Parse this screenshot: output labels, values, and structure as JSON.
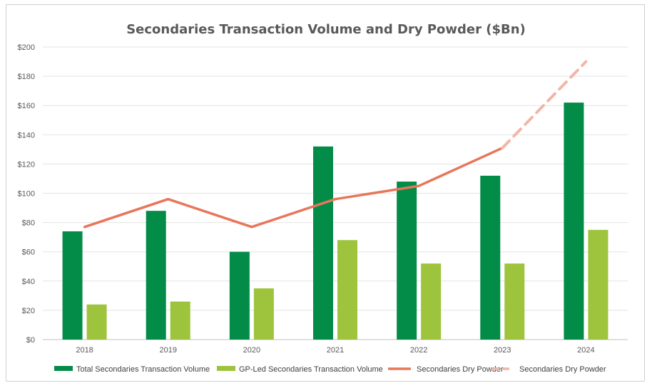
{
  "chart_data": {
    "type": "bar",
    "title": "Secondaries Transaction Volume and Dry Powder ($Bn)",
    "categories": [
      "2018",
      "2019",
      "2020",
      "2021",
      "2022",
      "2023",
      "2024"
    ],
    "ylim": [
      0,
      200
    ],
    "yticks": [
      0,
      20,
      40,
      60,
      80,
      100,
      120,
      140,
      160,
      180,
      200
    ],
    "ytick_labels": [
      "$0",
      "$20",
      "$40",
      "$60",
      "$80",
      "$100",
      "$120",
      "$140",
      "$160",
      "$180",
      "$200"
    ],
    "grid": true,
    "legend_position": "bottom",
    "series": [
      {
        "name": "Total Secondaries Transaction Volume",
        "kind": "bar",
        "color": "#038c48",
        "values": [
          74,
          88,
          60,
          132,
          108,
          112,
          162
        ]
      },
      {
        "name": "GP-Led Secondaries Transaction Volume",
        "kind": "bar",
        "color": "#9dc43c",
        "values": [
          24,
          26,
          35,
          68,
          52,
          52,
          75
        ]
      },
      {
        "name": "Secondaries Dry Powder",
        "kind": "line",
        "color": "#e8765a",
        "values": [
          77,
          96,
          77,
          96,
          105,
          131,
          null
        ]
      },
      {
        "name": "Secondaries Dry Powder",
        "kind": "line-dashed",
        "color": "#f2b6a7",
        "values": [
          null,
          null,
          null,
          null,
          null,
          131,
          190
        ]
      }
    ]
  }
}
